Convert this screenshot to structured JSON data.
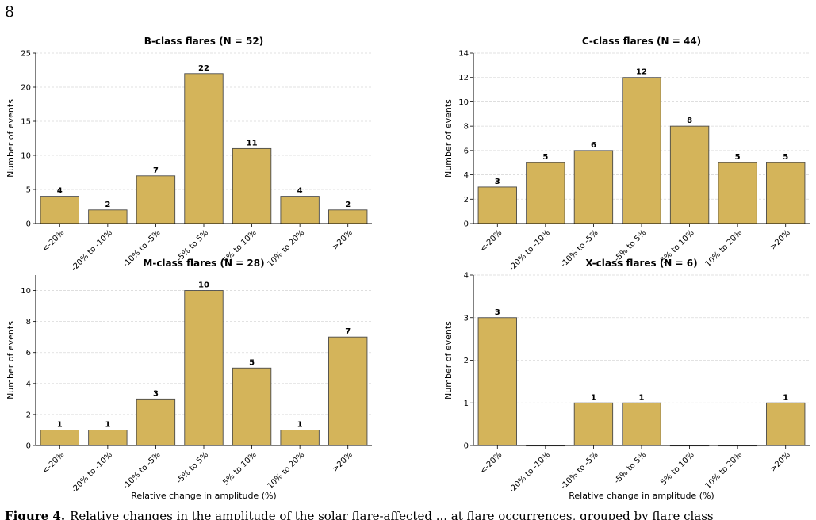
{
  "page": {
    "number": "8",
    "caption_label": "Figure 4.",
    "caption_text": "Relative changes in the amplitude of the solar flare-affected ... at flare occurrences, grouped by flare class"
  },
  "colors": {
    "bar_fill": "#D4B45A",
    "bar_stroke": "#4a4a4a",
    "grid": "#d9d9d9"
  },
  "chart_data": [
    {
      "type": "bar",
      "title": "B-class flares (N = 52)",
      "ylabel": "Number of events",
      "xlabel": "",
      "categories": [
        "<-20%",
        "-20% to -10%",
        "-10% to -5%",
        "-5% to 5%",
        "5% to 10%",
        "10% to 20%",
        ">20%"
      ],
      "values": [
        4,
        2,
        7,
        22,
        11,
        4,
        2
      ],
      "ylim": [
        0,
        25
      ],
      "yticks": [
        0,
        5,
        10,
        15,
        20,
        25
      ],
      "grid": true
    },
    {
      "type": "bar",
      "title": "C-class flares (N = 44)",
      "ylabel": "Number of events",
      "xlabel": "",
      "categories": [
        "<-20%",
        "-20% to -10%",
        "-10% to -5%",
        "-5% to 5%",
        "5% to 10%",
        "10% to 20%",
        ">20%"
      ],
      "values": [
        3,
        5,
        6,
        12,
        8,
        5,
        5
      ],
      "ylim": [
        0,
        14
      ],
      "yticks": [
        0,
        2,
        4,
        6,
        8,
        10,
        12,
        14
      ],
      "grid": true
    },
    {
      "type": "bar",
      "title": "M-class flares (N = 28)",
      "ylabel": "Number of events",
      "xlabel": "Relative change in amplitude (%)",
      "categories": [
        "<-20%",
        "-20% to -10%",
        "-10% to -5%",
        "-5% to 5%",
        "5% to 10%",
        "10% to 20%",
        ">20%"
      ],
      "values": [
        1,
        1,
        3,
        10,
        5,
        1,
        7
      ],
      "ylim": [
        0,
        11
      ],
      "yticks": [
        0,
        2,
        4,
        6,
        8,
        10
      ],
      "grid": true
    },
    {
      "type": "bar",
      "title": "X-class flares (N = 6)",
      "ylabel": "Number of events",
      "xlabel": "Relative change in amplitude (%)",
      "categories": [
        "<-20%",
        "-20% to -10%",
        "-10% to -5%",
        "-5% to 5%",
        "5% to 10%",
        "10% to 20%",
        ">20%"
      ],
      "values": [
        3,
        0,
        1,
        1,
        0,
        0,
        1
      ],
      "ylim": [
        0,
        4
      ],
      "yticks": [
        0,
        1,
        2,
        3,
        4
      ],
      "grid": true
    }
  ]
}
